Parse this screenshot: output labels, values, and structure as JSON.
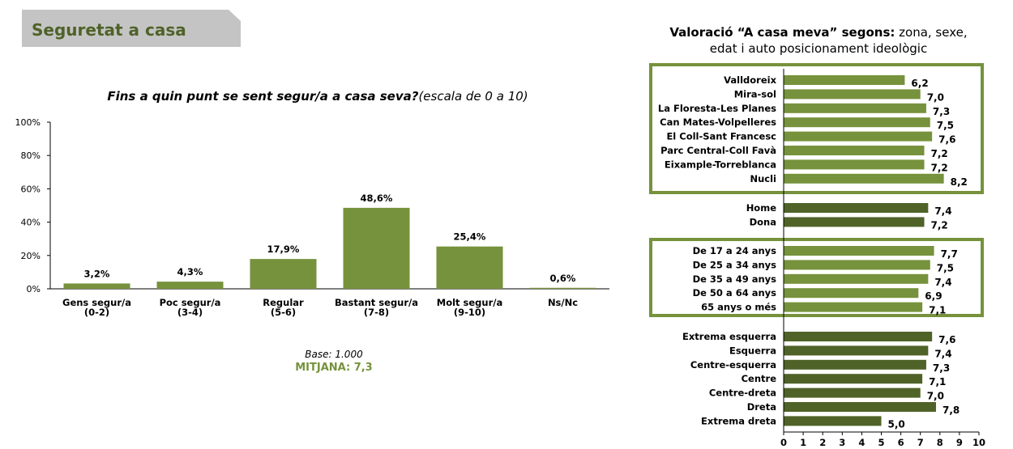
{
  "header": {
    "title": "Seguretat a casa"
  },
  "left": {
    "question_bold": "Fins a quin punt se sent segur/a a casa seva?",
    "question_rest": "(escala de 0 a 10)",
    "base": "Base: 1.000",
    "mean": "MITJANA: 7,3"
  },
  "right": {
    "header_bold": "Valoració “A casa meva” segons:",
    "header_rest": " zona, sexe,",
    "header_line2": "edat i auto posicionament ideològic"
  },
  "colors": {
    "accent": "#76923c",
    "dark": "#4f6228",
    "banner": "#c4c4c4"
  },
  "chart_data": [
    {
      "type": "bar",
      "title": "Fins a quin punt se sent segur/a a casa seva? (escala de 0 a 10)",
      "categories": [
        [
          "Gens segur/a",
          "(0-2)"
        ],
        [
          "Poc segur/a",
          "(3-4)"
        ],
        [
          "Regular",
          "(5-6)"
        ],
        [
          "Bastant segur/a",
          "(7-8)"
        ],
        [
          "Molt segur/a",
          "(9-10)"
        ],
        [
          "Ns/Nc"
        ]
      ],
      "values": [
        3.2,
        4.3,
        17.9,
        48.6,
        25.4,
        0.6
      ],
      "value_labels": [
        "3,2%",
        "4,3%",
        "17,9%",
        "48,6%",
        "25,4%",
        "0,6%"
      ],
      "ylim": [
        0,
        100
      ],
      "yticks": [
        "0%",
        "20%",
        "40%",
        "60%",
        "80%",
        "100%"
      ],
      "grid": false
    },
    {
      "type": "bar",
      "orientation": "horizontal",
      "xlim": [
        0,
        10
      ],
      "xticks": [
        "0",
        "1",
        "2",
        "3",
        "4",
        "5",
        "6",
        "7",
        "8",
        "9",
        "10"
      ],
      "groups": [
        {
          "framed": true,
          "color": "#76923c",
          "items": [
            {
              "label": "Valldoreix",
              "value": 6.2,
              "text": "6,2"
            },
            {
              "label": "Mira-sol",
              "value": 7.0,
              "text": "7,0"
            },
            {
              "label": "La Floresta-Les Planes",
              "value": 7.3,
              "text": "7,3"
            },
            {
              "label": "Can Mates-Volpelleres",
              "value": 7.5,
              "text": "7,5"
            },
            {
              "label": "El Coll-Sant Francesc",
              "value": 7.6,
              "text": "7,6"
            },
            {
              "label": "Parc Central-Coll Favà",
              "value": 7.2,
              "text": "7,2"
            },
            {
              "label": "Eixample-Torreblanca",
              "value": 7.2,
              "text": "7,2"
            },
            {
              "label": "Nucli",
              "value": 8.2,
              "text": "8,2"
            }
          ]
        },
        {
          "framed": false,
          "color": "#4f6228",
          "items": [
            {
              "label": "Home",
              "value": 7.4,
              "text": "7,4"
            },
            {
              "label": "Dona",
              "value": 7.2,
              "text": "7,2"
            }
          ]
        },
        {
          "framed": true,
          "color": "#76923c",
          "items": [
            {
              "label": "De 17 a 24 anys",
              "value": 7.7,
              "text": "7,7"
            },
            {
              "label": "De 25 a 34 anys",
              "value": 7.5,
              "text": "7,5"
            },
            {
              "label": "De 35 a 49 anys",
              "value": 7.4,
              "text": "7,4"
            },
            {
              "label": "De 50 a 64 anys",
              "value": 6.9,
              "text": "6,9"
            },
            {
              "label": "65 anys o més",
              "value": 7.1,
              "text": "7,1"
            }
          ]
        },
        {
          "framed": false,
          "color": "#4f6228",
          "items": [
            {
              "label": "Extrema esquerra",
              "value": 7.6,
              "text": "7,6"
            },
            {
              "label": "Esquerra",
              "value": 7.4,
              "text": "7,4"
            },
            {
              "label": "Centre-esquerra",
              "value": 7.3,
              "text": "7,3"
            },
            {
              "label": "Centre",
              "value": 7.1,
              "text": "7,1"
            },
            {
              "label": "Centre-dreta",
              "value": 7.0,
              "text": "7,0"
            },
            {
              "label": "Dreta",
              "value": 7.8,
              "text": "7,8"
            },
            {
              "label": "Extrema dreta",
              "value": 5.0,
              "text": "5,0"
            }
          ]
        }
      ]
    }
  ]
}
